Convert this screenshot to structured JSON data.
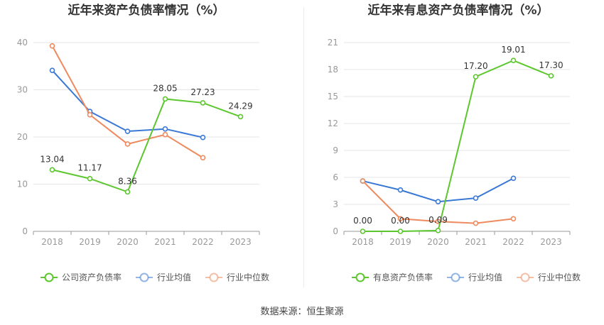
{
  "source": {
    "label": "数据来源：",
    "value": "恒生聚源"
  },
  "chart_data": [
    {
      "type": "line",
      "title": "近年来资产负债率情况（%）",
      "categories": [
        "2018",
        "2019",
        "2020",
        "2021",
        "2022",
        "2023"
      ],
      "ylim": [
        0,
        40
      ],
      "yticks": [
        0,
        10,
        20,
        30,
        40
      ],
      "grid": true,
      "legend_position": "bottom",
      "series": [
        {
          "name": "公司资产负债率",
          "color": "#5cc72e",
          "values": [
            13.04,
            11.17,
            8.36,
            28.05,
            27.23,
            24.29
          ],
          "data_labels": [
            "13.04",
            "11.17",
            "8.36",
            "28.05",
            "27.23",
            "24.29"
          ]
        },
        {
          "name": "行业均值",
          "color": "#3a78d6",
          "values": [
            34.1,
            25.4,
            21.2,
            21.7,
            19.9,
            null
          ]
        },
        {
          "name": "行业中位数",
          "color": "#ee8a5e",
          "values": [
            39.3,
            24.7,
            18.5,
            20.5,
            15.6,
            null
          ]
        }
      ]
    },
    {
      "type": "line",
      "title": "近年来有息资产负债率情况（%）",
      "categories": [
        "2018",
        "2019",
        "2020",
        "2021",
        "2022",
        "2023"
      ],
      "ylim": [
        0,
        21
      ],
      "yticks": [
        0,
        3,
        6,
        9,
        12,
        15,
        18,
        21
      ],
      "grid": true,
      "legend_position": "bottom",
      "series": [
        {
          "name": "有息资产负债率",
          "color": "#5cc72e",
          "values": [
            0.0,
            0.0,
            0.09,
            17.2,
            19.01,
            17.3
          ],
          "data_labels": [
            "0.00",
            "0.00",
            "0.09",
            "17.20",
            "19.01",
            "17.30"
          ]
        },
        {
          "name": "行业均值",
          "color": "#3a78d6",
          "values": [
            5.6,
            4.6,
            3.3,
            3.7,
            5.9,
            null
          ]
        },
        {
          "name": "行业中位数",
          "color": "#ee8a5e",
          "values": [
            5.6,
            1.4,
            1.1,
            0.9,
            1.4,
            null
          ]
        }
      ]
    }
  ]
}
